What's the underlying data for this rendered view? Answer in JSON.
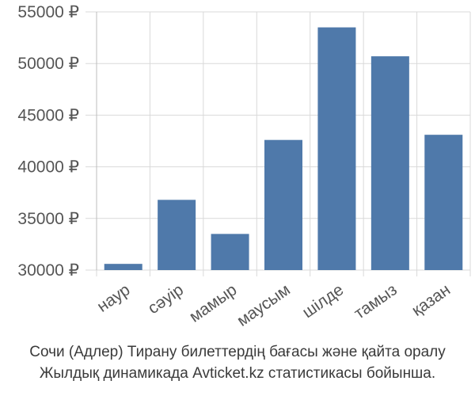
{
  "chart_data": {
    "type": "bar",
    "categories": [
      "наур",
      "сәуір",
      "мамыр",
      "маусым",
      "шілде",
      "тамыз",
      "қазан"
    ],
    "values": [
      30600,
      36800,
      33500,
      42600,
      53500,
      50700,
      43100
    ],
    "ylim": [
      29000,
      56000
    ],
    "yticks": [
      30000,
      35000,
      40000,
      45000,
      50000,
      55000
    ],
    "ytick_labels": [
      "30000 ₽",
      "35000 ₽",
      "40000 ₽",
      "45000 ₽",
      "50000 ₽",
      "55000 ₽"
    ],
    "grid": true,
    "bar_color": "#4f79aa",
    "grid_color": "#d9d9d9",
    "text_color": "#555555"
  },
  "caption": {
    "line1": "Сочи (Адлер) Тирану билеттердің бағасы және қайта оралу",
    "line2": "Жылдық динамикада Avticket.kz статистикасы бойынша."
  }
}
